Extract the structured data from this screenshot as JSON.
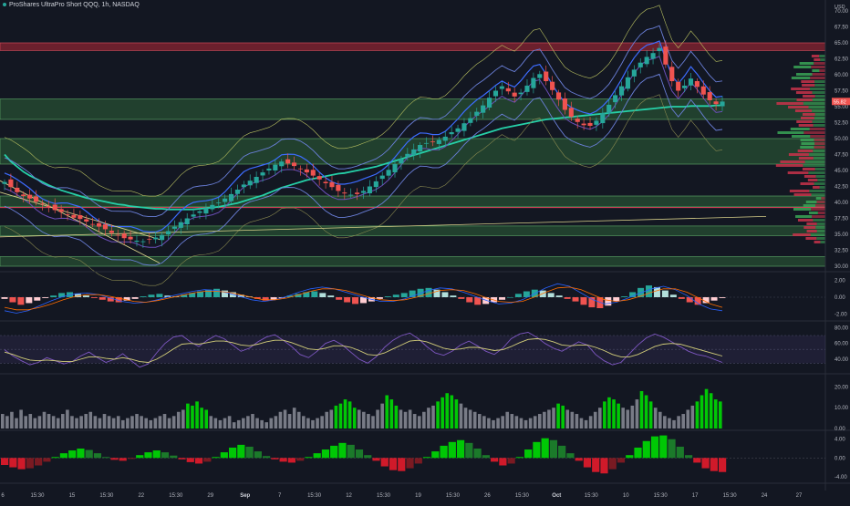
{
  "header": {
    "title": "ProShares UltraPro Short QQQ, 1h, NASDAQ",
    "currency": "USD"
  },
  "colors": {
    "background": "#131722",
    "up": "#26a69a",
    "down": "#ef5350",
    "upVol": "#00c805",
    "grayVol": "#787b86",
    "accent": "#2962ff",
    "teal": "#26d0a8",
    "purple": "#7e57c2",
    "yellow": "#d4cf7a"
  },
  "chart_data": [
    {
      "panel": "price",
      "type": "candlestick",
      "y_ticks": [
        "70.00",
        "67.50",
        "65.00",
        "62.50",
        "60.00",
        "57.50",
        "55.00",
        "52.50",
        "50.00",
        "47.50",
        "45.00",
        "42.50",
        "40.00",
        "37.50",
        "35.00",
        "32.50",
        "30.00"
      ],
      "ylim": [
        30,
        71
      ],
      "price_label": "55.82",
      "x_ticks": [
        "6",
        "15:30",
        "15",
        "15:30",
        "22",
        "15:30",
        "29",
        "Sep",
        "7",
        "15:30",
        "12",
        "15:30",
        "19",
        "15:30",
        "26",
        "15:30",
        "Oct",
        "15:30",
        "10",
        "15:30",
        "17",
        "15:30",
        "24",
        "27"
      ],
      "zones": [
        {
          "from": 63.8,
          "to": 65.0,
          "kind": "resistance"
        },
        {
          "from": 53.0,
          "to": 56.2,
          "kind": "support"
        },
        {
          "from": 46.0,
          "to": 50.0,
          "kind": "support"
        },
        {
          "from": 39.3,
          "to": 41.0,
          "kind": "support"
        },
        {
          "from": 34.8,
          "to": 36.3,
          "kind": "support"
        },
        {
          "from": 30.0,
          "to": 31.5,
          "kind": "support"
        }
      ],
      "close": [
        43.2,
        42.4,
        41.6,
        41.0,
        40.6,
        40.1,
        39.7,
        39.3,
        38.8,
        38.5,
        38.1,
        37.6,
        37.4,
        37.0,
        36.6,
        36.2,
        35.8,
        35.2,
        34.8,
        34.4,
        34.2,
        34.0,
        33.9,
        34.2,
        34.5,
        34.9,
        35.5,
        36.2,
        36.9,
        37.5,
        38.1,
        38.6,
        39.1,
        39.6,
        40.0,
        40.6,
        41.3,
        42.0,
        42.8,
        43.4,
        44.0,
        44.7,
        45.3,
        45.9,
        46.4,
        46.1,
        45.7,
        45.2,
        44.7,
        44.2,
        43.6,
        43.0,
        42.4,
        41.8,
        41.4,
        41.2,
        41.3,
        41.8,
        42.5,
        43.3,
        44.2,
        45.1,
        46.0,
        46.8,
        47.6,
        48.3,
        49.0,
        49.3,
        49.5,
        49.8,
        50.3,
        51.0,
        51.6,
        52.4,
        53.2,
        54.2,
        55.2,
        56.4,
        57.5,
        58.2,
        57.4,
        56.6,
        57.2,
        58.3,
        59.5,
        60.1,
        59.0,
        57.6,
        56.1,
        54.5,
        53.4,
        52.6,
        52.1,
        52.0,
        52.8,
        54.0,
        55.3,
        56.8,
        58.2,
        59.6,
        60.8,
        61.9,
        62.8,
        63.4,
        64.2,
        61.6,
        59.0,
        57.5,
        58.3,
        59.4,
        58.1,
        56.9,
        56.0,
        55.4,
        55.8
      ],
      "ema_200": [
        47.5,
        46.4,
        45.6,
        44.8,
        44.2,
        43.7,
        43.2,
        42.7,
        42.3,
        41.9,
        41.6,
        41.3,
        41.0,
        40.7,
        40.5,
        40.3,
        40.1,
        39.9,
        39.7,
        39.6,
        39.4,
        39.3,
        39.2,
        39.1,
        39.0,
        39.0,
        38.9,
        38.9,
        38.9,
        38.9,
        38.9,
        39.0,
        39.1,
        39.2,
        39.3,
        39.5,
        39.7,
        39.9,
        40.2,
        40.5,
        40.8,
        41.1,
        41.5,
        41.9,
        42.3,
        42.6,
        42.9,
        43.2,
        43.5,
        43.7,
        43.9,
        44.1,
        44.3,
        44.5,
        44.6,
        44.8,
        45.0,
        45.2,
        45.4,
        45.6,
        45.9,
        46.2,
        46.5,
        46.8,
        47.1,
        47.4,
        47.7,
        48.0,
        48.3,
        48.6,
        48.9,
        49.2,
        49.5,
        49.8,
        50.1,
        50.4,
        50.7,
        51.0,
        51.3,
        51.6,
        51.8,
        52.0,
        52.2,
        52.4,
        52.6,
        52.8,
        53.0,
        53.1,
        53.2,
        53.3,
        53.4,
        53.5,
        53.6,
        53.7,
        53.8,
        53.9,
        54.0,
        54.1,
        54.2,
        54.3,
        54.4,
        54.5,
        54.6,
        54.7,
        54.8,
        54.9,
        55.0,
        55.0,
        55.0,
        55.1,
        55.1,
        55.1,
        55.1,
        55.2,
        55.2
      ]
    },
    {
      "panel": "macd",
      "type": "histogram",
      "y_ticks": [
        "2.00",
        "0.00",
        "-2.00"
      ],
      "ylim": [
        -2.6,
        2.6
      ],
      "values": [
        -0.2,
        -0.6,
        -0.9,
        -0.7,
        -0.4,
        -0.1,
        0.2,
        0.5,
        0.6,
        0.4,
        0.2,
        -0.1,
        -0.3,
        -0.5,
        -0.6,
        -0.4,
        -0.2,
        0.1,
        0.3,
        0.4,
        0.2,
        0.1,
        0.3,
        0.5,
        0.7,
        0.9,
        1.0,
        0.8,
        0.6,
        0.3,
        0.1,
        -0.2,
        -0.4,
        -0.3,
        -0.1,
        0.2,
        0.4,
        0.6,
        0.7,
        0.5,
        0.2,
        -0.3,
        -0.6,
        -0.8,
        -0.7,
        -0.5,
        -0.2,
        0.1,
        0.3,
        0.5,
        0.8,
        1.0,
        1.1,
        0.9,
        0.6,
        0.2,
        -0.2,
        -0.6,
        -0.9,
        -0.8,
        -0.6,
        -0.3,
        0.0,
        0.4,
        0.7,
        0.9,
        0.8,
        0.5,
        0.2,
        -0.2,
        -0.5,
        -0.9,
        -1.2,
        -1.3,
        -1.0,
        -0.5,
        0.1,
        0.6,
        1.1,
        1.4,
        1.2,
        0.8,
        0.3,
        -0.2,
        -0.6,
        -0.9,
        -0.7,
        -0.4,
        -0.1
      ],
      "series": [
        {
          "values": [
            -1.6,
            -1.9,
            -1.6,
            -1.0,
            -0.4,
            0.1,
            0.4,
            0.5,
            0.3,
            -0.1,
            -0.5,
            -0.7,
            -0.6,
            -0.3,
            0.1,
            0.4,
            0.7,
            0.9,
            0.8,
            0.5,
            0.1,
            -0.3,
            -0.5,
            -0.3,
            0.1,
            0.6,
            1.0,
            1.2,
            1.0,
            0.6,
            0.2,
            -0.2,
            -0.5,
            -0.5,
            -0.2,
            0.3,
            0.8,
            1.1,
            1.0,
            0.6,
            0.1,
            -0.4,
            -0.8,
            -0.7,
            -0.3,
            0.4,
            1.1,
            1.6,
            1.3,
            0.5,
            -0.3,
            -0.8,
            -0.6,
            -0.1,
            0.5,
            1.0,
            1.3,
            0.9,
            0.2,
            -0.8,
            -1.4,
            -1.6
          ]
        },
        {
          "values": [
            -1.2,
            -1.5,
            -1.5,
            -1.2,
            -0.8,
            -0.3,
            0.1,
            0.3,
            0.3,
            0.1,
            -0.2,
            -0.5,
            -0.6,
            -0.4,
            -0.1,
            0.2,
            0.5,
            0.7,
            0.7,
            0.6,
            0.3,
            0.0,
            -0.3,
            -0.3,
            -0.1,
            0.3,
            0.7,
            1.0,
            1.0,
            0.8,
            0.4,
            0.0,
            -0.3,
            -0.4,
            -0.3,
            0.0,
            0.4,
            0.8,
            0.9,
            0.8,
            0.4,
            -0.1,
            -0.5,
            -0.6,
            -0.5,
            0.0,
            0.6,
            1.1,
            1.2,
            0.9,
            0.3,
            -0.3,
            -0.5,
            -0.3,
            0.1,
            0.6,
            1.0,
            1.0,
            0.6,
            -0.1,
            -0.8,
            -1.2
          ]
        }
      ]
    },
    {
      "panel": "rsi",
      "type": "line",
      "y_ticks": [
        "80.00",
        "60.00",
        "40.00"
      ],
      "ylim": [
        25,
        85
      ],
      "band": [
        35,
        70
      ],
      "series": [
        {
          "values": [
            52,
            44,
            38,
            33,
            36,
            42,
            38,
            34,
            37,
            44,
            49,
            42,
            36,
            40,
            47,
            38,
            30,
            34,
            48,
            60,
            68,
            70,
            62,
            56,
            64,
            70,
            66,
            58,
            50,
            54,
            62,
            68,
            71,
            64,
            56,
            46,
            42,
            50,
            60,
            64,
            58,
            49,
            40,
            35,
            43,
            55,
            64,
            70,
            73,
            66,
            56,
            48,
            45,
            50,
            58,
            63,
            57,
            50,
            46,
            54,
            66,
            72,
            74,
            68,
            60,
            54,
            50,
            56,
            62,
            58,
            46,
            38,
            33,
            36,
            47,
            58,
            67,
            72,
            68,
            62,
            56,
            50,
            46,
            44,
            40,
            36
          ]
        },
        {
          "values": [
            49,
            46,
            42,
            39,
            38,
            39,
            38,
            37,
            37,
            40,
            43,
            43,
            41,
            40,
            42,
            40,
            37,
            36,
            40,
            46,
            53,
            59,
            60,
            59,
            61,
            63,
            63,
            61,
            58,
            57,
            59,
            62,
            64,
            64,
            61,
            57,
            53,
            52,
            54,
            57,
            57,
            55,
            51,
            46,
            45,
            48,
            53,
            58,
            63,
            64,
            62,
            58,
            54,
            52,
            53,
            55,
            55,
            53,
            51,
            52,
            56,
            61,
            65,
            66,
            65,
            62,
            58,
            57,
            58,
            58,
            55,
            51,
            46,
            43,
            43,
            46,
            51,
            56,
            59,
            60,
            59,
            56,
            53,
            50,
            47,
            44
          ]
        }
      ]
    },
    {
      "panel": "volume",
      "type": "bar",
      "y_ticks": [
        "20.00",
        "10.00",
        "0.00"
      ],
      "ylim": [
        0,
        25
      ],
      "values": [
        7,
        6,
        8,
        5,
        9,
        6,
        7,
        5,
        6,
        8,
        7,
        6,
        5,
        7,
        9,
        6,
        5,
        6,
        7,
        8,
        6,
        5,
        7,
        6,
        5,
        6,
        4,
        5,
        6,
        7,
        6,
        5,
        4,
        5,
        6,
        7,
        5,
        6,
        8,
        9,
        12,
        11,
        13,
        10,
        9,
        6,
        5,
        4,
        5,
        6,
        3,
        4,
        5,
        6,
        7,
        5,
        4,
        3,
        5,
        6,
        8,
        9,
        7,
        10,
        8,
        6,
        5,
        4,
        5,
        6,
        8,
        9,
        11,
        12,
        14,
        13,
        10,
        9,
        8,
        7,
        6,
        9,
        12,
        16,
        14,
        11,
        9,
        8,
        9,
        7,
        6,
        8,
        10,
        11,
        13,
        15,
        17,
        16,
        14,
        12,
        10,
        9,
        8,
        7,
        6,
        5,
        4,
        5,
        6,
        8,
        7,
        6,
        5,
        4,
        5,
        6,
        7,
        8,
        9,
        10,
        12,
        11,
        9,
        8,
        7,
        5,
        4,
        6,
        8,
        10,
        13,
        15,
        14,
        12,
        10,
        9,
        11,
        14,
        18,
        16,
        13,
        10,
        8,
        6,
        5,
        4,
        6,
        7,
        9,
        11,
        13,
        16,
        19,
        17,
        14,
        13
      ],
      "green_indices": [
        40,
        41,
        42,
        43,
        44,
        72,
        73,
        74,
        75,
        76,
        83,
        84,
        85,
        94,
        95,
        96,
        97,
        98,
        120,
        121,
        130,
        131,
        132,
        133,
        138,
        139,
        140,
        150,
        151,
        152,
        153,
        154,
        155
      ]
    },
    {
      "panel": "oscillator",
      "type": "histogram",
      "y_ticks": [
        "4.00",
        "0.00",
        "-4.00"
      ],
      "ylim": [
        -5,
        5.5
      ],
      "values": [
        -1.5,
        -2.0,
        -2.4,
        -2.2,
        -1.6,
        -0.8,
        0.2,
        1.0,
        1.6,
        2.0,
        1.7,
        1.0,
        0.2,
        -0.4,
        -0.6,
        -0.2,
        0.6,
        1.2,
        1.6,
        1.2,
        0.5,
        -0.3,
        -0.9,
        -1.2,
        -0.8,
        0.2,
        1.2,
        2.2,
        2.8,
        2.4,
        1.4,
        0.4,
        -0.3,
        -0.8,
        -1.0,
        -0.6,
        0.2,
        1.0,
        1.8,
        2.6,
        3.2,
        2.8,
        1.8,
        0.6,
        -0.6,
        -1.8,
        -2.6,
        -2.8,
        -2.2,
        -1.2,
        0.2,
        1.4,
        2.6,
        3.4,
        3.8,
        3.2,
        2.0,
        0.6,
        -0.8,
        -1.6,
        -1.2,
        0.2,
        1.8,
        3.4,
        4.2,
        3.8,
        2.6,
        1.0,
        -0.6,
        -2.0,
        -3.0,
        -3.3,
        -2.4,
        -1.0,
        0.6,
        2.2,
        3.6,
        4.6,
        4.8,
        4.0,
        2.4,
        0.6,
        -1.0,
        -2.2,
        -2.8,
        -3.0
      ]
    }
  ]
}
